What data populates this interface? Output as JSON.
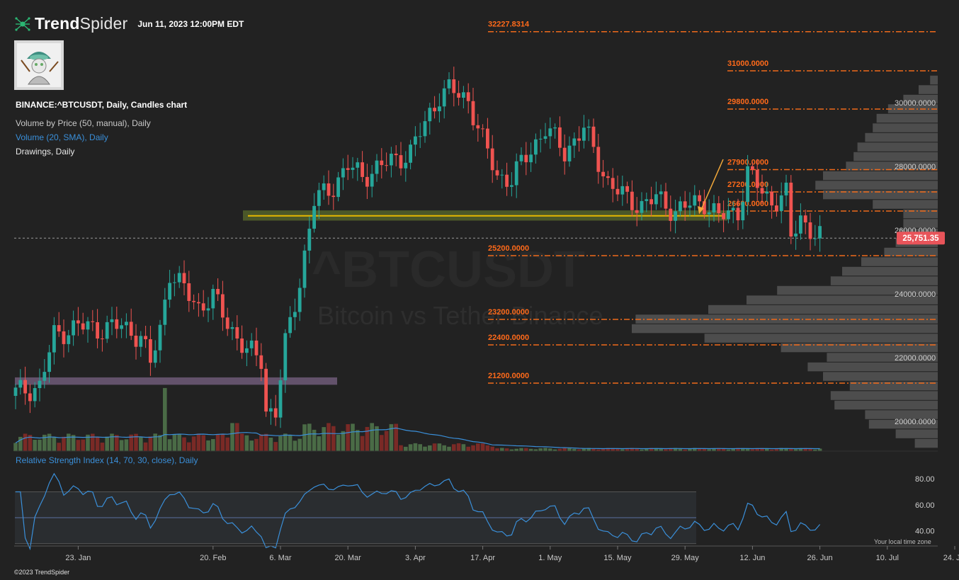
{
  "header": {
    "brand_bold": "Trend",
    "brand_light": "Spider",
    "date": "Jun 11, 2023 12:00PM EDT"
  },
  "legend": {
    "symbol": "BINANCE:^BTCUSDT, Daily, Candles chart",
    "vbp": "Volume by Price (50, manual), Daily",
    "volume": "Volume (20, SMA), Daily",
    "drawings": "Drawings, Daily"
  },
  "rsi_label": "Relative Strength Index (14, 70, 30, close), Daily",
  "copyright": "©2023 TrendSpider",
  "timezone_note": "Your local time zone",
  "watermark": {
    "title": "^BTCUSDT",
    "subtitle": "Bitcoin vs Tether Binance"
  },
  "colors": {
    "background": "#222222",
    "up": "#26a69a",
    "down": "#ef5350",
    "up_volume": "#4a6b46",
    "down_volume": "#7a2a26",
    "level_line": "#f06a1a",
    "level_text": "#ff6a1a",
    "price_tag": "#e8545a",
    "rsi": "#3a8fd9",
    "vbp": "#555555",
    "support_zone": "#5a6a2c",
    "support_line": "#e6b800",
    "purple_zone": "#6e5a78",
    "arrow": "#f2a83a"
  },
  "chart_data": {
    "type": "candlestick",
    "symbol": "BINANCE:^BTCUSDT",
    "price_axis_ticks": [
      "30000.0000",
      "28000.0000",
      "26000.0000",
      "24000.0000",
      "22000.0000",
      "20000.0000"
    ],
    "x_tick_labels": [
      "23. Jan",
      "20. Feb",
      "6. Mar",
      "20. Mar",
      "3. Apr",
      "17. Apr",
      "1. May",
      "15. May",
      "29. May",
      "12. Jun",
      "26. Jun",
      "10. Jul",
      "24. Jul"
    ],
    "last_price": "25,751.35",
    "horizontal_levels": [
      "32227.8314",
      "31000.0000",
      "29800.0000",
      "27900.0000",
      "27200.0000",
      "26600.0000",
      "25200.0000",
      "23200.0000",
      "22400.0000",
      "21200.0000"
    ],
    "support_zone": {
      "low": 26300,
      "high": 26620,
      "line": 26450
    },
    "purple_zone": {
      "low": 21150,
      "high": 21380
    },
    "rsi": {
      "ticks": [
        "80.00",
        "60.00",
        "40.00"
      ],
      "overbought": 70,
      "oversold": 30,
      "mid": 50
    },
    "volume_by_price": [
      {
        "price": 30700,
        "volume": 0.02
      },
      {
        "price": 30400,
        "volume": 0.05
      },
      {
        "price": 30100,
        "volume": 0.09
      },
      {
        "price": 29800,
        "volume": 0.13
      },
      {
        "price": 29500,
        "volume": 0.16
      },
      {
        "price": 29200,
        "volume": 0.17
      },
      {
        "price": 28900,
        "volume": 0.19
      },
      {
        "price": 28600,
        "volume": 0.21
      },
      {
        "price": 28300,
        "volume": 0.22
      },
      {
        "price": 28000,
        "volume": 0.24
      },
      {
        "price": 27700,
        "volume": 0.3
      },
      {
        "price": 27400,
        "volume": 0.32
      },
      {
        "price": 27100,
        "volume": 0.3
      },
      {
        "price": 26800,
        "volume": 0.17
      },
      {
        "price": 26500,
        "volume": 0.09
      },
      {
        "price": 26200,
        "volume": 0.09
      },
      {
        "price": 25900,
        "volume": 0.1
      },
      {
        "price": 25600,
        "volume": 0.11
      },
      {
        "price": 25300,
        "volume": 0.14
      },
      {
        "price": 25000,
        "volume": 0.2
      },
      {
        "price": 24700,
        "volume": 0.25
      },
      {
        "price": 24400,
        "volume": 0.28
      },
      {
        "price": 24100,
        "volume": 0.42
      },
      {
        "price": 23800,
        "volume": 0.5
      },
      {
        "price": 23500,
        "volume": 0.6
      },
      {
        "price": 23200,
        "volume": 0.79
      },
      {
        "price": 22900,
        "volume": 0.8
      },
      {
        "price": 22600,
        "volume": 0.61
      },
      {
        "price": 22300,
        "volume": 0.41
      },
      {
        "price": 22000,
        "volume": 0.29
      },
      {
        "price": 21700,
        "volume": 0.34
      },
      {
        "price": 21400,
        "volume": 0.3
      },
      {
        "price": 21100,
        "volume": 0.23
      },
      {
        "price": 20800,
        "volume": 0.28
      },
      {
        "price": 20500,
        "volume": 0.27
      },
      {
        "price": 20200,
        "volume": 0.19
      },
      {
        "price": 19900,
        "volume": 0.18
      },
      {
        "price": 19600,
        "volume": 0.11
      },
      {
        "price": 19300,
        "volume": 0.06
      }
    ]
  }
}
